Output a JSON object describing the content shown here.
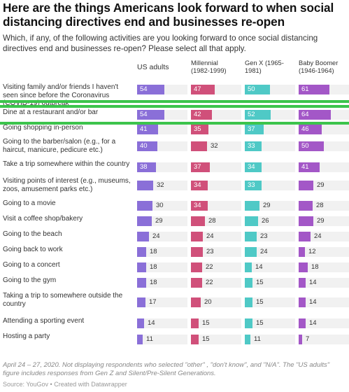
{
  "title": "Here are the things Americans look forward to when social distancing directives end and businesses re-open",
  "subtitle": "Which, if any, of the following activities are you looking forward to once social distancing directives end and businesses re-open? Please select all that apply.",
  "note": "April 24 – 27, 2020. Not displaying respondents who selected \"other\" , \"don't know\", and \"N/A\". The \"US adults\" figure includes responses from Gen Z and Silent/Pre-Silent Generations.",
  "source": "Source: YouGov • Created with Datawrapper",
  "colors": {
    "us_adults": "#8a6fd8",
    "millennial": "#d0507a",
    "gen_x": "#4fc9c6",
    "baby_boomer": "#a357c7",
    "highlight_line": "#3cc44c"
  },
  "chart_data": {
    "type": "bar",
    "xlim": [
      0,
      100
    ],
    "highlighted_rows": [
      0,
      1
    ],
    "columns": [
      {
        "key": "us",
        "lines": [
          "US adults"
        ]
      },
      {
        "key": "mil",
        "lines": [
          "Millennial",
          "(1982-1999)"
        ]
      },
      {
        "key": "genx",
        "lines": [
          "Gen X (1965-",
          "1981)"
        ]
      },
      {
        "key": "boom",
        "lines": [
          "Baby Boomer",
          "(1946-1964)"
        ]
      }
    ],
    "categories": [
      "Visiting family and/or friends I haven't seen since before the Coronavirus (COVID-19) outbreak",
      "Dine at a restaurant and/or bar",
      "Going shopping in-person",
      "Going to the barber/salon (e.g., for a haircut, manicure, pedicure etc.)",
      "Take a trip somewhere within the country",
      "Visiting points of interest (e.g., museums, zoos, amusement parks etc.)",
      "Going to a movie",
      "Visit a coffee shop/bakery",
      "Going to the beach",
      "Going back to work",
      "Going to a concert",
      "Going to the gym",
      "Taking a trip to somewhere outside the country",
      "Attending a sporting event",
      "Hosting a party"
    ],
    "series": [
      {
        "name": "US adults",
        "values": [
          54,
          54,
          41,
          40,
          38,
          32,
          30,
          29,
          24,
          18,
          18,
          18,
          17,
          14,
          11
        ]
      },
      {
        "name": "Millennial (1982-1999)",
        "values": [
          47,
          42,
          35,
          32,
          37,
          34,
          34,
          28,
          24,
          23,
          22,
          22,
          20,
          15,
          15
        ]
      },
      {
        "name": "Gen X (1965-1981)",
        "values": [
          50,
          52,
          37,
          33,
          34,
          33,
          29,
          26,
          23,
          24,
          14,
          15,
          15,
          15,
          11
        ]
      },
      {
        "name": "Baby Boomer (1946-1964)",
        "values": [
          61,
          64,
          46,
          50,
          41,
          29,
          28,
          29,
          24,
          12,
          18,
          14,
          14,
          14,
          7
        ]
      }
    ]
  }
}
